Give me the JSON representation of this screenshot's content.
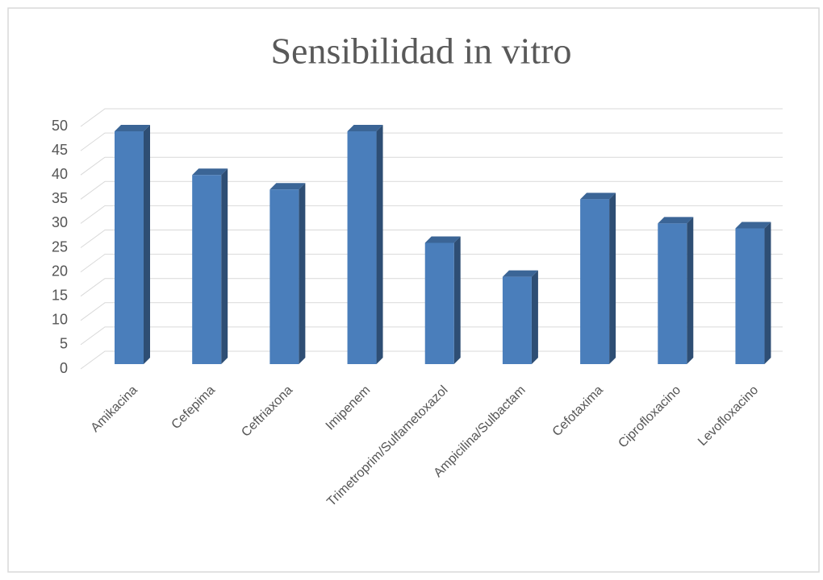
{
  "chart_data": {
    "type": "bar",
    "title": "Sensibilidad in vitro",
    "categories": [
      "Amikacina",
      "Cefepima",
      "Ceftriaxona",
      "Imipenem",
      "Trimetroprim/Sulfametoxazol",
      "Ampicilina/Sulbactam",
      "Cefotaxima",
      "Ciprofloxacino",
      "Levofloxacino"
    ],
    "values": [
      48,
      39,
      36,
      48,
      25,
      18,
      34,
      29,
      28
    ],
    "color": "#4a7ebb",
    "ylim": [
      0,
      50
    ],
    "yticks": [
      0,
      5,
      10,
      15,
      20,
      25,
      30,
      35,
      40,
      45,
      50
    ],
    "grid": true
  }
}
